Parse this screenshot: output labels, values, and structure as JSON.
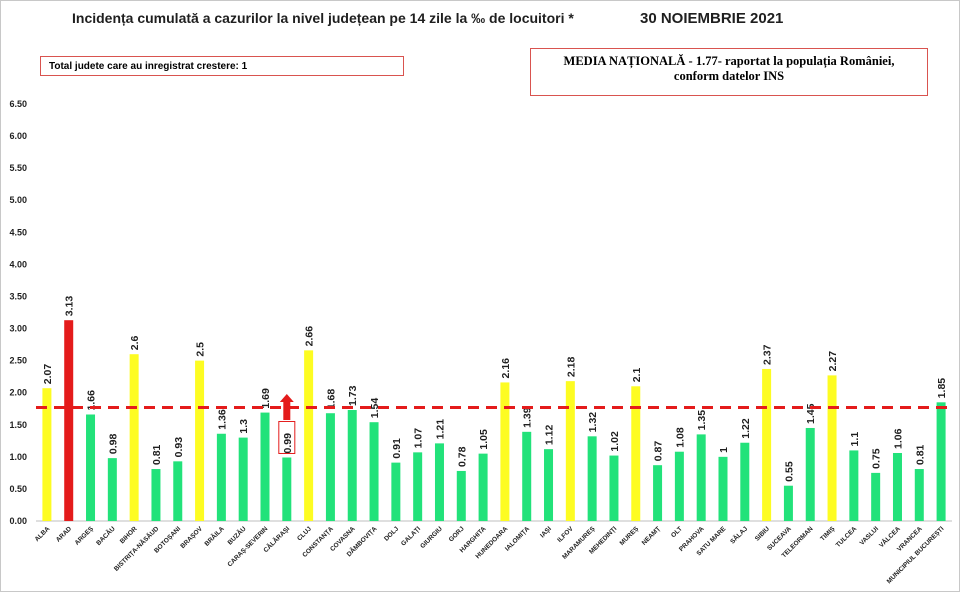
{
  "title": "Incidența cumulată a cazurilor la nivel județean pe 14 zile la ‰ de locuitori *",
  "date": "30 NOIEMBRIE 2021",
  "box_left": "Total judete care au inregistrat crestere: 1",
  "box_right_line1": "MEDIA NAȚIONALĂ - 1.77-  raportat la populația României,",
  "box_right_line2": "conform datelor INS",
  "colors": {
    "green": "#22e27a",
    "yellow": "#fdfc22",
    "red": "#e41b1b",
    "mean_line": "#e41b1b"
  },
  "chart_data": {
    "type": "bar",
    "categories": [
      "ALBA",
      "ARAD",
      "ARGEȘ",
      "BACĂU",
      "BIHOR",
      "BISTRIȚA-NĂSĂUD",
      "BOTOȘANI",
      "BRAȘOV",
      "BRĂILA",
      "BUZĂU",
      "CARAȘ-SEVERIN",
      "CĂLĂRAȘI",
      "CLUJ",
      "CONSTANȚA",
      "COVASNA",
      "DÂMBOVIȚA",
      "DOLJ",
      "GALAȚI",
      "GIURGIU",
      "GORJ",
      "HARGHITA",
      "HUNEDOARA",
      "IALOMIȚA",
      "IAȘI",
      "ILFOV",
      "MARAMUREȘ",
      "MEHEDINȚI",
      "MUREȘ",
      "NEAMȚ",
      "OLT",
      "PRAHOVA",
      "SATU MARE",
      "SĂLAJ",
      "SIBIU",
      "SUCEAVA",
      "TELEORMAN",
      "TIMIȘ",
      "TULCEA",
      "VASLUI",
      "VÂLCEA",
      "VRANCEA",
      "MUNICIPIUL BUCUREȘTI"
    ],
    "values": [
      2.07,
      3.13,
      1.66,
      0.98,
      2.6,
      0.81,
      0.93,
      2.5,
      1.36,
      1.3,
      1.69,
      0.99,
      2.66,
      1.68,
      1.73,
      1.54,
      0.91,
      1.07,
      1.21,
      0.78,
      1.05,
      2.16,
      1.39,
      1.12,
      2.18,
      1.32,
      1.02,
      2.1,
      0.87,
      1.08,
      1.35,
      1,
      1.22,
      2.37,
      0.55,
      1.45,
      2.27,
      1.1,
      0.75,
      1.06,
      0.81,
      1.85
    ],
    "value_labels": [
      "2.07",
      "3.13",
      "1.66",
      "0.98",
      "2.6",
      "0.81",
      "0.93",
      "2.5",
      "1.36",
      "1.3",
      "1.69",
      "0.99",
      "2.66",
      "1.68",
      "1.73",
      "1.54",
      "0.91",
      "1.07",
      "1.21",
      "0.78",
      "1.05",
      "2.16",
      "1.39",
      "1.12",
      "2.18",
      "1.32",
      "1.02",
      "2.1",
      "0.87",
      "1.08",
      "1.35",
      "1",
      "1.22",
      "2.37",
      "0.55",
      "1.45",
      "2.27",
      "1.1",
      "0.75",
      "1.06",
      "0.81",
      "1.85"
    ],
    "bar_colors": [
      "yellow",
      "red",
      "green",
      "green",
      "yellow",
      "green",
      "green",
      "yellow",
      "green",
      "green",
      "green",
      "green",
      "yellow",
      "green",
      "green",
      "green",
      "green",
      "green",
      "green",
      "green",
      "green",
      "yellow",
      "green",
      "green",
      "yellow",
      "green",
      "green",
      "yellow",
      "green",
      "green",
      "green",
      "green",
      "green",
      "yellow",
      "green",
      "green",
      "yellow",
      "green",
      "green",
      "green",
      "green",
      "green"
    ],
    "mean": 1.77,
    "increase_marker_category": "CĂLĂRAȘI",
    "ylim": [
      0,
      6.5
    ],
    "yticks": [
      "0.00",
      "0.50",
      "1.00",
      "1.50",
      "2.00",
      "2.50",
      "3.00",
      "3.50",
      "4.00",
      "4.50",
      "5.00",
      "5.50",
      "6.00",
      "6.50"
    ],
    "grid": false,
    "xlabel": "",
    "ylabel": ""
  }
}
